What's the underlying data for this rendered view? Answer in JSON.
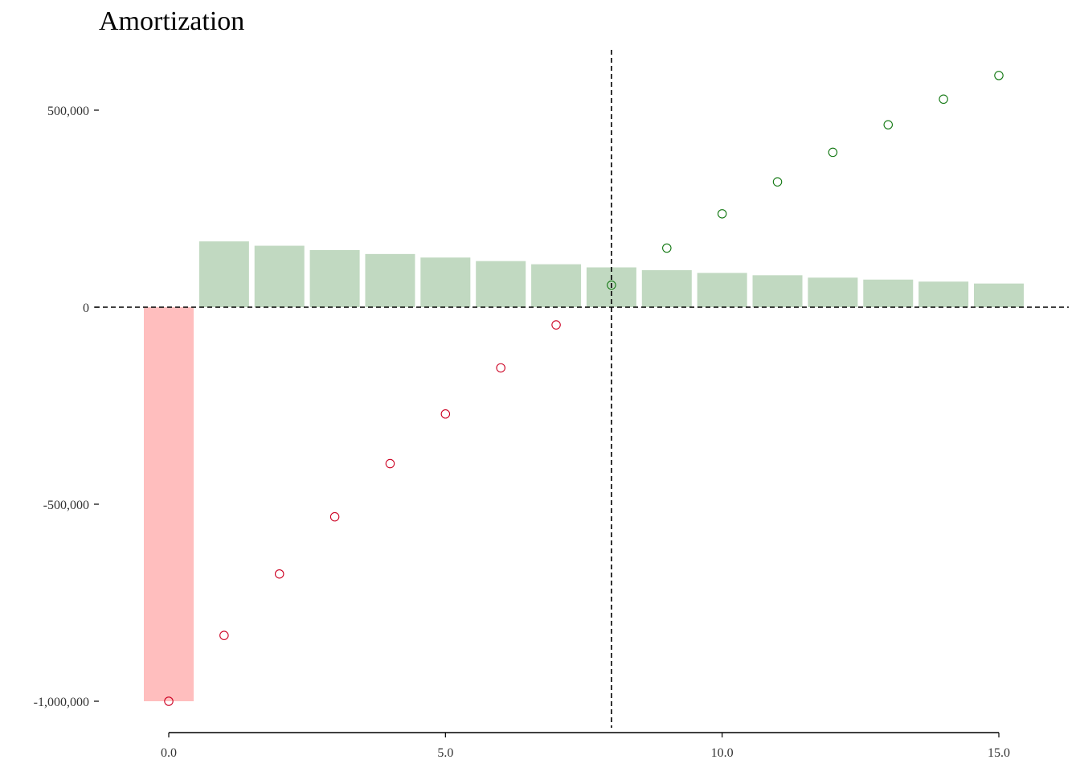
{
  "chart_data": {
    "type": "bar",
    "title": "Amortization",
    "xlabel": "",
    "ylabel": "",
    "x": [
      0,
      1,
      2,
      3,
      4,
      5,
      6,
      7,
      8,
      9,
      10,
      11,
      12,
      13,
      14,
      15
    ],
    "bar_values": [
      -1000000,
      167000,
      156000,
      145000,
      135000,
      126000,
      117000,
      109000,
      101000,
      94000,
      87000,
      81000,
      75000,
      70000,
      65000,
      60000
    ],
    "cumulative_values": [
      -1000000,
      -833000,
      -677000,
      -532000,
      -397000,
      -271000,
      -154000,
      -45000,
      56000,
      150000,
      237000,
      318000,
      393000,
      463000,
      528000,
      588000
    ],
    "xlim": [
      -0.5,
      15.5
    ],
    "ylim": [
      -1000000,
      600000
    ],
    "x_ticks": [
      0,
      5,
      10,
      15
    ],
    "x_tick_labels": [
      "0.0",
      "5.0",
      "10.0",
      "15.0"
    ],
    "y_ticks": [
      500000,
      0,
      -500000,
      -1000000
    ],
    "y_tick_labels": [
      "500,000",
      "0",
      "-500,000",
      "-1,000,000"
    ],
    "reference_lines": {
      "horizontal_y": 0,
      "vertical_x": 8
    },
    "colors": {
      "negative_bar": "#FFBEBE",
      "positive_bar": "#C1D9C1",
      "negative_point": "#CC0022",
      "positive_point": "#117711",
      "axis": "#000000",
      "tick_text": "#333333"
    },
    "grid": false,
    "legend": "none"
  }
}
